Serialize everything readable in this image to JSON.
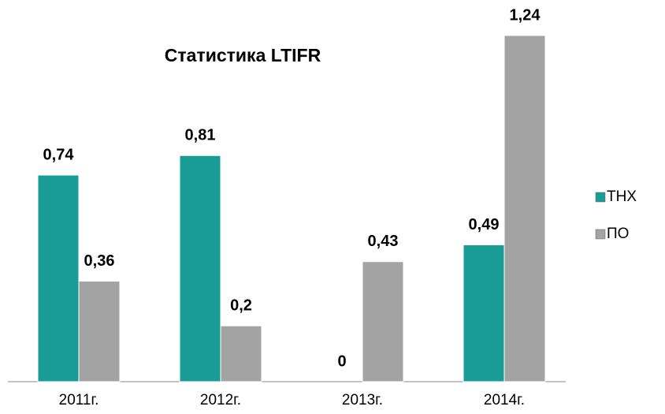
{
  "chart_data": {
    "type": "bar",
    "title": "Статистика  LTIFR",
    "categories": [
      "2011г.",
      "2012г.",
      "2013г.",
      "2014г."
    ],
    "series": [
      {
        "name": "ТНХ",
        "color": "#1a9c96",
        "values": [
          0.74,
          0.81,
          0,
          0.49
        ],
        "value_labels": [
          "0,74",
          "0,81",
          "0",
          "0,49"
        ]
      },
      {
        "name": "ПО",
        "color": "#a3a3a3",
        "values": [
          0.36,
          0.2,
          0.43,
          1.24
        ],
        "value_labels": [
          "0,36",
          "0,2",
          "0,43",
          "1,24"
        ]
      }
    ],
    "legend": "right"
  }
}
